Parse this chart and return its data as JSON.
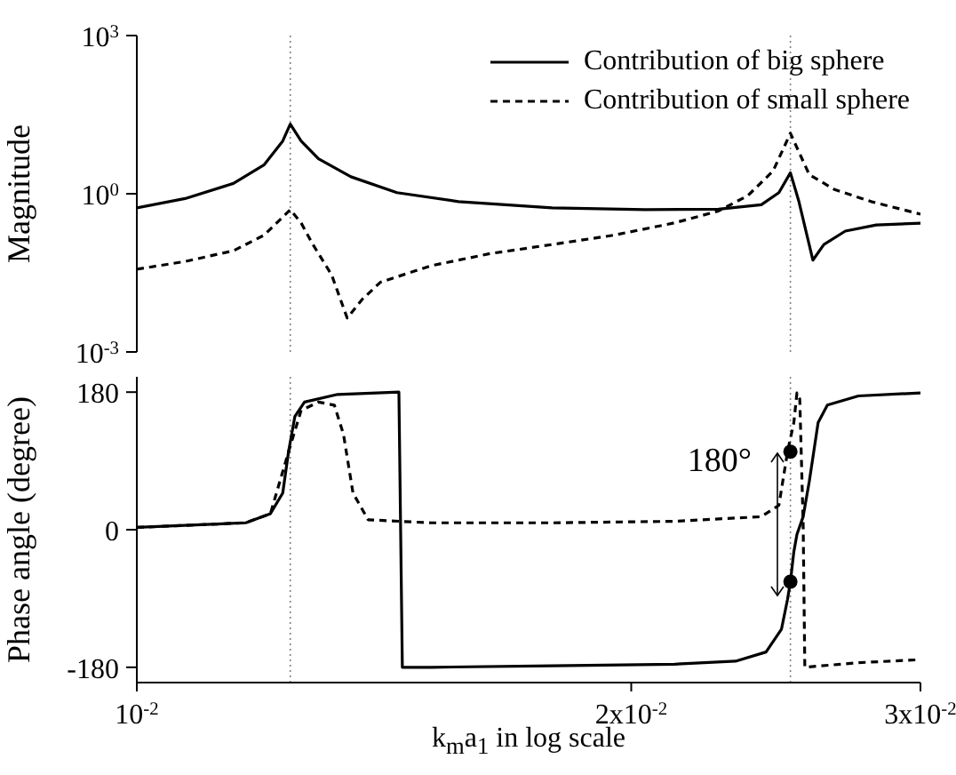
{
  "chart_data": [
    {
      "type": "line",
      "ylabel": "Magnitude",
      "log": "xy",
      "xlim": [
        0.01,
        0.03
      ],
      "xticks": [
        {
          "value": 0.01,
          "label": null
        },
        {
          "value": 0.02,
          "label": null
        },
        {
          "value": 0.03,
          "label": null
        }
      ],
      "ylim": [
        0.001,
        1000
      ],
      "yticks": [
        {
          "value": 0.001,
          "label": "10$^{-3}$"
        },
        {
          "value": 1,
          "label": "10$^{0}$"
        },
        {
          "value": 1000,
          "label": "10$^{3}$"
        }
      ],
      "tick_labels": "y",
      "legend": "top right",
      "ref_lines": [
        {
          "axis": "x",
          "value": 0.0124,
          "color": "#808080",
          "line_style": "dotted"
        },
        {
          "axis": "x",
          "value": 0.025,
          "color": "#808080",
          "line_style": "dotted"
        }
      ],
      "series": [
        {
          "name": "Contribution of big sphere",
          "color": "#000000",
          "line_style": "solid",
          "x": [
            0.01,
            0.0107,
            0.01145,
            0.01195,
            0.01227,
            0.0124,
            0.01259,
            0.0129,
            0.0135,
            0.0144,
            0.0157,
            0.0179,
            0.0204,
            0.0226,
            0.024,
            0.0246,
            0.025,
            0.0253,
            0.0258,
            0.0262,
            0.027,
            0.0282,
            0.03
          ],
          "values": [
            0.54,
            0.81,
            1.57,
            3.5,
            10,
            21,
            10,
            4.6,
            2.1,
            1.05,
            0.71,
            0.54,
            0.5,
            0.51,
            0.62,
            1.05,
            2.5,
            0.71,
            0.055,
            0.109,
            0.196,
            0.256,
            0.277
          ]
        },
        {
          "name": "Contribution of small sphere",
          "color": "#000000",
          "line_style": "dashed",
          "x": [
            0.01,
            0.0107,
            0.01145,
            0.01195,
            0.01227,
            0.0124,
            0.01259,
            0.0128,
            0.01314,
            0.01343,
            0.01371,
            0.01407,
            0.0151,
            0.0164,
            0.0179,
            0.0195,
            0.02125,
            0.0226,
            0.02355,
            0.0244,
            0.025,
            0.02567,
            0.0266,
            0.028,
            0.03
          ],
          "values": [
            0.037,
            0.052,
            0.083,
            0.163,
            0.36,
            0.5,
            0.28,
            0.109,
            0.029,
            0.0044,
            0.0098,
            0.021,
            0.043,
            0.073,
            0.109,
            0.163,
            0.28,
            0.47,
            0.92,
            2.7,
            14,
            2.3,
            1.2,
            0.71,
            0.41
          ]
        }
      ]
    },
    {
      "type": "line",
      "ylabel": "Phase angle (degree)",
      "xlabel": "k$_{m}$a$_{1}$ in log scale",
      "log": "x",
      "xlim": [
        0.01,
        0.03
      ],
      "xticks": [
        {
          "value": 0.01,
          "label": "10$^{-2}$"
        },
        {
          "value": 0.02,
          "label": "2x10$^{-2}$"
        },
        {
          "value": 0.03,
          "label": "3x10$^{-2}$"
        }
      ],
      "ylim": [
        -200,
        200
      ],
      "yticks": [
        -180,
        0,
        180
      ],
      "annotations": [
        {
          "text": "180°",
          "x": 0.025,
          "y": 17
        }
      ],
      "ref_lines": [
        {
          "axis": "x",
          "value": 0.0124,
          "color": "#808080",
          "line_style": "dotted"
        },
        {
          "axis": "x",
          "value": 0.025,
          "color": "#808080",
          "line_style": "dotted"
        }
      ],
      "series": [
        {
          "color": "#000000",
          "line_style": "solid",
          "x": [
            0.01,
            0.01165,
            0.01206,
            0.01227,
            0.01237,
            0.01248,
            0.01265,
            0.01325,
            0.01444,
            0.01451,
            0.0151,
            0.0179,
            0.02125,
            0.02315,
            0.02416,
            0.02469,
            0.0249,
            0.025,
            0.02512,
            0.02523,
            0.02545,
            0.02567,
            0.02599,
            0.02633,
            0.0275,
            0.03
          ],
          "values": [
            3,
            9,
            21,
            48,
            102,
            148,
            167,
            177,
            180,
            -180,
            -180,
            -178,
            -176,
            -172,
            -160,
            -130,
            -91,
            -68,
            -29,
            -6,
            17,
            63,
            140,
            163,
            175,
            179
          ]
        },
        {
          "color": "#000000",
          "line_style": "dashed",
          "x": [
            0.01,
            0.01165,
            0.01206,
            0.01237,
            0.01259,
            0.0129,
            0.01319,
            0.01336,
            0.01354,
            0.01383,
            0.0151,
            0.0179,
            0.02125,
            0.024,
            0.0246,
            0.0249,
            0.02512,
            0.02523,
            0.02533,
            0.02545,
            0.02551,
            0.0275,
            0.03
          ],
          "values": [
            3,
            9,
            21,
            102,
            156,
            167,
            163,
            125,
            48,
            13,
            9,
            9,
            11,
            17,
            32,
            102,
            140,
            179,
            171,
            9,
            -180,
            -174,
            -170
          ]
        },
        {
          "type": "scatter",
          "color": "#000000",
          "marker": "circle",
          "x": [
            0.025,
            0.025
          ],
          "values": [
            102,
            -68
          ]
        }
      ]
    }
  ]
}
